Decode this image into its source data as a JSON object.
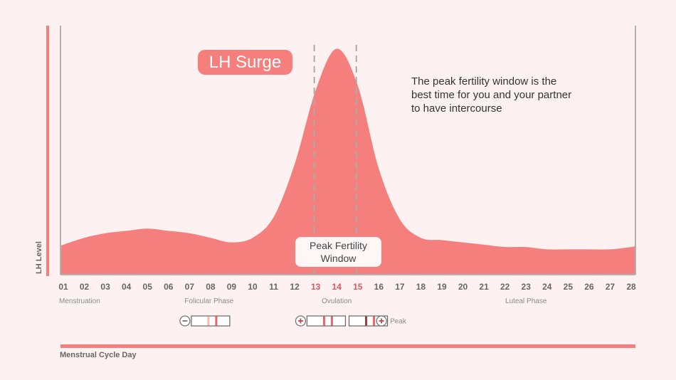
{
  "chart_data": {
    "type": "area",
    "x": [
      "01",
      "02",
      "03",
      "04",
      "05",
      "06",
      "07",
      "08",
      "09",
      "10",
      "11",
      "12",
      "13",
      "14",
      "15",
      "16",
      "17",
      "18",
      "19",
      "20",
      "21",
      "22",
      "23",
      "24",
      "25",
      "26",
      "27",
      "28"
    ],
    "highlight_days": [
      "13",
      "14",
      "15"
    ],
    "series": [
      {
        "values": [
          0.13,
          0.16,
          0.18,
          0.19,
          0.2,
          0.19,
          0.18,
          0.16,
          0.14,
          0.16,
          0.25,
          0.48,
          0.8,
          0.98,
          0.82,
          0.46,
          0.24,
          0.16,
          0.15,
          0.14,
          0.13,
          0.12,
          0.12,
          0.11,
          0.11,
          0.11,
          0.11,
          0.12
        ]
      }
    ],
    "xlabel": "Menstrual Cycle Day",
    "ylabel": "LH Level",
    "ylim": [
      0,
      1
    ],
    "grid": false,
    "color": "#f47f7d",
    "peak_window": {
      "start": "13",
      "end": "15",
      "label": "Peak Fertility Window"
    },
    "surge_label": "LH Surge",
    "annotation": [
      "The peak fertility window is the",
      "best time for you and your partner",
      "to have intercourse"
    ],
    "phases": [
      {
        "label": "Menstruation",
        "at": "01"
      },
      {
        "label": "Folicular Phase",
        "at": "08"
      },
      {
        "label": "Ovulation",
        "at": "14"
      },
      {
        "label": "Luteal Phase",
        "at": "23"
      }
    ],
    "test_strips": [
      {
        "symbol": "−",
        "position": "left",
        "lines": [
          "faint",
          "control"
        ],
        "at": "08"
      },
      {
        "symbol": "+",
        "position": "left",
        "lines": [
          "test",
          "control"
        ],
        "at": "13.5"
      },
      {
        "symbol": "",
        "position": "none",
        "lines": [
          "dark",
          "control"
        ],
        "at": "15.5"
      },
      {
        "symbol": "+",
        "position": "right",
        "lines": [],
        "label": "Peak",
        "at": "16.4"
      }
    ]
  }
}
